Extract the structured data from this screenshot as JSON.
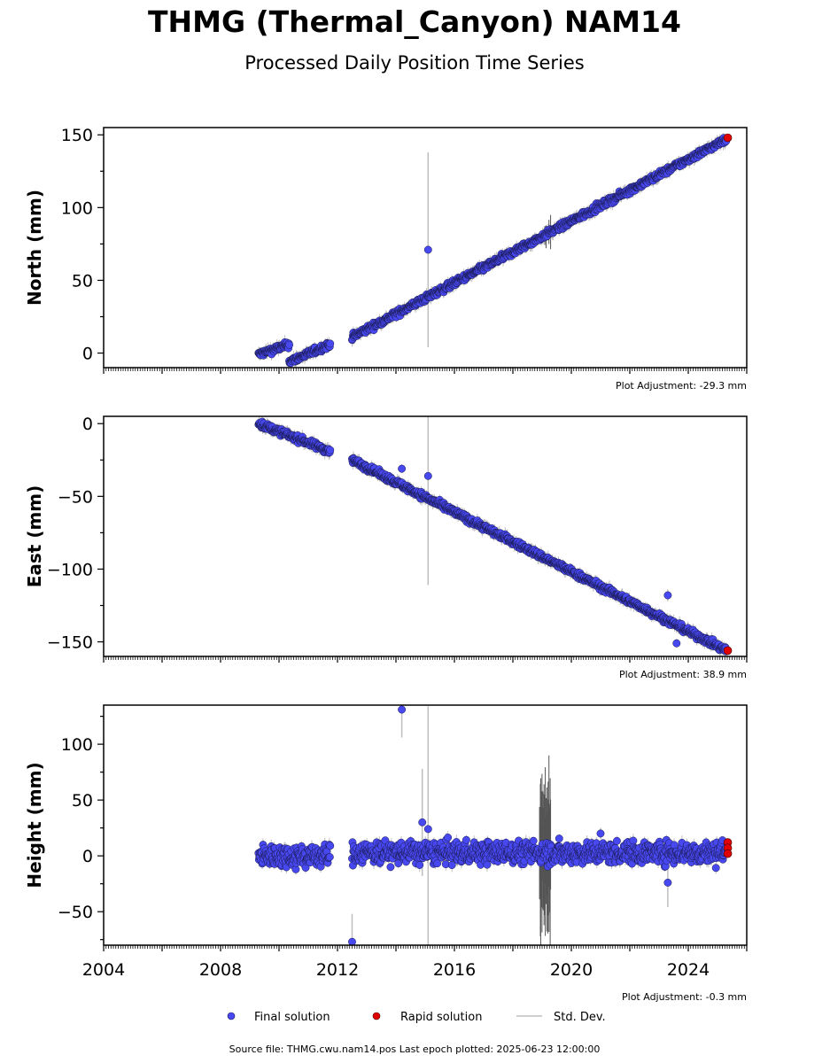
{
  "title": "THMG (Thermal_Canyon) NAM14",
  "subtitle": "Processed Daily Position Time Series",
  "footer": "Source file: THMG.cwu.nam14.pos  Last epoch plotted: 2025-06-23 12:00:00",
  "colors": {
    "final": "#4848f0",
    "final_edge": "#1a1a50",
    "rapid": "#e00000",
    "stddev": "#bfbfbf",
    "stddev_dark": "#555555"
  },
  "chart_data": [
    {
      "type": "scatter",
      "ylabel": "North (mm)",
      "xlim": [
        2004,
        2026
      ],
      "ylim": [
        -10,
        155
      ],
      "yticks": [
        0,
        50,
        100,
        150
      ],
      "ytick_labels": [
        "0",
        "50",
        "100",
        "150"
      ],
      "adjustment": "Plot Adjustment: -29.3 mm",
      "segments": [
        {
          "series": "Final solution",
          "x_start": 2009.3,
          "x_end": 2010.35,
          "y_start": -1,
          "y_end": 6
        },
        {
          "series": "Final solution",
          "x_start": 2010.35,
          "x_end": 2011.75,
          "y_start": -6,
          "y_end": 6
        },
        {
          "series": "Final solution",
          "x_start": 2012.5,
          "x_end": 2025.3,
          "y_start": 11,
          "y_end": 147
        }
      ],
      "outliers": [
        {
          "x": 2015.1,
          "y": 71,
          "err": 67
        }
      ],
      "rapid": [
        {
          "x": 2025.35,
          "y": 148
        }
      ],
      "noise": 1.5
    },
    {
      "type": "scatter",
      "ylabel": "East (mm)",
      "xlim": [
        2004,
        2026
      ],
      "ylim": [
        -160,
        5
      ],
      "yticks": [
        0,
        -50,
        -100,
        -150
      ],
      "ytick_labels": [
        "0",
        "−50",
        "−100",
        "−150"
      ],
      "adjustment": "Plot Adjustment: 38.9 mm",
      "segments": [
        {
          "series": "Final solution",
          "x_start": 2009.3,
          "x_end": 2011.75,
          "y_start": 0,
          "y_end": -19
        },
        {
          "series": "Final solution",
          "x_start": 2012.5,
          "x_end": 2025.3,
          "y_start": -25,
          "y_end": -156
        }
      ],
      "outliers": [
        {
          "x": 2015.1,
          "y": -36,
          "err": 75
        },
        {
          "x": 2023.3,
          "y": -118,
          "err": 4
        },
        {
          "x": 2023.6,
          "y": -151,
          "err": 3
        },
        {
          "x": 2014.2,
          "y": -31,
          "err": 3
        }
      ],
      "rapid": [
        {
          "x": 2025.35,
          "y": -156
        }
      ],
      "noise": 1.5
    },
    {
      "type": "scatter",
      "ylabel": "Height (mm)",
      "xlim": [
        2004,
        2026
      ],
      "ylim": [
        -80,
        135
      ],
      "yticks": [
        100,
        50,
        0,
        -50
      ],
      "ytick_labels": [
        "100",
        "50",
        "0",
        "−50"
      ],
      "xticks": [
        2004,
        2008,
        2012,
        2016,
        2020,
        2024
      ],
      "xtick_labels": [
        "2004",
        "2008",
        "2012",
        "2016",
        "2020",
        "2024"
      ],
      "adjustment": "Plot Adjustment: -0.3 mm",
      "segments": [
        {
          "series": "Final solution",
          "x_start": 2009.3,
          "x_end": 2011.75,
          "y_start": 0,
          "y_end": 0
        },
        {
          "series": "Final solution",
          "x_start": 2012.5,
          "x_end": 2025.3,
          "y_start": 3,
          "y_end": 3
        }
      ],
      "outliers": [
        {
          "x": 2014.2,
          "y": 131,
          "err": 25
        },
        {
          "x": 2012.5,
          "y": -77,
          "err": 25
        },
        {
          "x": 2014.9,
          "y": 30,
          "err": 48
        },
        {
          "x": 2015.1,
          "y": 24,
          "err": 110
        },
        {
          "x": 2021.0,
          "y": 20,
          "err": 5
        },
        {
          "x": 2023.3,
          "y": -24,
          "err": 22
        }
      ],
      "rapid": [
        {
          "x": 2025.35,
          "y": 12
        },
        {
          "x": 2025.35,
          "y": 7
        },
        {
          "x": 2025.35,
          "y": 2
        }
      ],
      "noise": 7
    }
  ],
  "legend": {
    "final": "Final solution",
    "rapid": "Rapid solution",
    "stddev": "Std. Dev."
  }
}
